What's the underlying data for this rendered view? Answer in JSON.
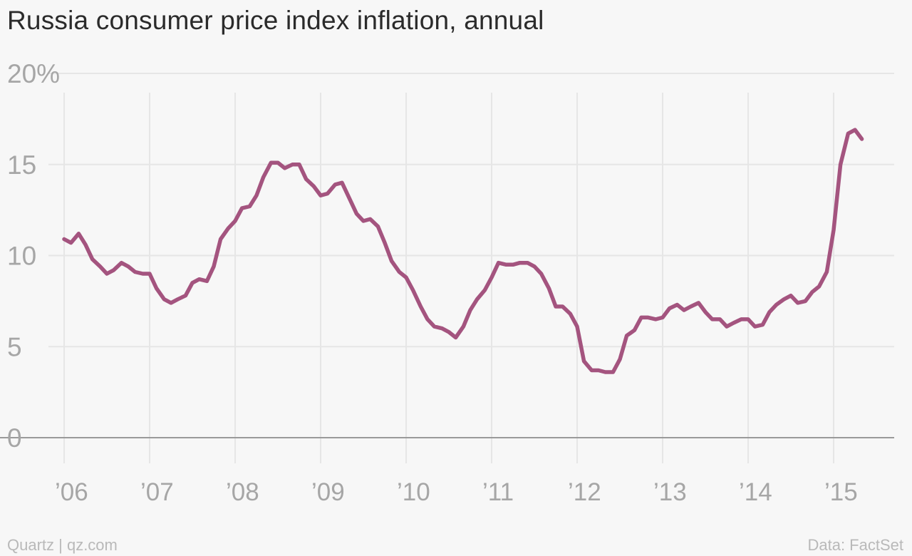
{
  "title": "Russia consumer price index inflation, annual",
  "footer": {
    "source_left": "Quartz | qz.com",
    "source_right": "Data: FactSet"
  },
  "colors": {
    "line": "#a4547f",
    "grid": "#e6e6e6",
    "baseline": "#9a9a9a",
    "tick_text": "#a6a6a6",
    "background": "#f7f7f7"
  },
  "chart_data": {
    "type": "line",
    "title": "Russia consumer price index inflation, annual",
    "xlabel": "",
    "ylabel": "",
    "ylim": [
      0,
      20
    ],
    "xlim": [
      2006.0,
      2015.7
    ],
    "grid": true,
    "yticks": [
      {
        "value": 20,
        "label": "20%"
      },
      {
        "value": 15,
        "label": "15"
      },
      {
        "value": 10,
        "label": "10"
      },
      {
        "value": 5,
        "label": "5"
      },
      {
        "value": 0,
        "label": "0"
      }
    ],
    "xticks": [
      {
        "value": 2006,
        "label": "’06"
      },
      {
        "value": 2007,
        "label": "’07"
      },
      {
        "value": 2008,
        "label": "’08"
      },
      {
        "value": 2009,
        "label": "’09"
      },
      {
        "value": 2010,
        "label": "’10"
      },
      {
        "value": 2011,
        "label": "’11"
      },
      {
        "value": 2012,
        "label": "’12"
      },
      {
        "value": 2013,
        "label": "’13"
      },
      {
        "value": 2014,
        "label": "’14"
      },
      {
        "value": 2015,
        "label": "’15"
      }
    ],
    "series": [
      {
        "values": [
          [
            2006.0,
            10.9
          ],
          [
            2006.08,
            10.7
          ],
          [
            2006.17,
            11.2
          ],
          [
            2006.25,
            10.6
          ],
          [
            2006.33,
            9.8
          ],
          [
            2006.42,
            9.4
          ],
          [
            2006.5,
            9.0
          ],
          [
            2006.58,
            9.2
          ],
          [
            2006.67,
            9.6
          ],
          [
            2006.75,
            9.4
          ],
          [
            2006.83,
            9.1
          ],
          [
            2006.92,
            9.0
          ],
          [
            2007.0,
            9.0
          ],
          [
            2007.08,
            8.2
          ],
          [
            2007.17,
            7.6
          ],
          [
            2007.25,
            7.4
          ],
          [
            2007.33,
            7.6
          ],
          [
            2007.42,
            7.8
          ],
          [
            2007.5,
            8.5
          ],
          [
            2007.58,
            8.7
          ],
          [
            2007.67,
            8.6
          ],
          [
            2007.75,
            9.4
          ],
          [
            2007.83,
            10.9
          ],
          [
            2007.92,
            11.5
          ],
          [
            2008.0,
            11.9
          ],
          [
            2008.08,
            12.6
          ],
          [
            2008.17,
            12.7
          ],
          [
            2008.25,
            13.3
          ],
          [
            2008.33,
            14.3
          ],
          [
            2008.42,
            15.1
          ],
          [
            2008.5,
            15.1
          ],
          [
            2008.58,
            14.8
          ],
          [
            2008.67,
            15.0
          ],
          [
            2008.75,
            15.0
          ],
          [
            2008.83,
            14.2
          ],
          [
            2008.92,
            13.8
          ],
          [
            2009.0,
            13.3
          ],
          [
            2009.08,
            13.4
          ],
          [
            2009.17,
            13.9
          ],
          [
            2009.25,
            14.0
          ],
          [
            2009.33,
            13.2
          ],
          [
            2009.42,
            12.3
          ],
          [
            2009.5,
            11.9
          ],
          [
            2009.58,
            12.0
          ],
          [
            2009.67,
            11.6
          ],
          [
            2009.75,
            10.7
          ],
          [
            2009.83,
            9.7
          ],
          [
            2009.92,
            9.1
          ],
          [
            2010.0,
            8.8
          ],
          [
            2010.08,
            8.1
          ],
          [
            2010.17,
            7.2
          ],
          [
            2010.25,
            6.5
          ],
          [
            2010.33,
            6.1
          ],
          [
            2010.42,
            6.0
          ],
          [
            2010.5,
            5.8
          ],
          [
            2010.58,
            5.5
          ],
          [
            2010.67,
            6.1
          ],
          [
            2010.75,
            7.0
          ],
          [
            2010.83,
            7.6
          ],
          [
            2010.92,
            8.1
          ],
          [
            2011.0,
            8.8
          ],
          [
            2011.08,
            9.6
          ],
          [
            2011.17,
            9.5
          ],
          [
            2011.25,
            9.5
          ],
          [
            2011.33,
            9.6
          ],
          [
            2011.42,
            9.6
          ],
          [
            2011.5,
            9.4
          ],
          [
            2011.58,
            9.0
          ],
          [
            2011.67,
            8.2
          ],
          [
            2011.75,
            7.2
          ],
          [
            2011.83,
            7.2
          ],
          [
            2011.92,
            6.8
          ],
          [
            2012.0,
            6.1
          ],
          [
            2012.08,
            4.2
          ],
          [
            2012.17,
            3.7
          ],
          [
            2012.25,
            3.7
          ],
          [
            2012.33,
            3.6
          ],
          [
            2012.42,
            3.6
          ],
          [
            2012.5,
            4.3
          ],
          [
            2012.58,
            5.6
          ],
          [
            2012.67,
            5.9
          ],
          [
            2012.75,
            6.6
          ],
          [
            2012.83,
            6.6
          ],
          [
            2012.92,
            6.5
          ],
          [
            2013.0,
            6.6
          ],
          [
            2013.08,
            7.1
          ],
          [
            2013.17,
            7.3
          ],
          [
            2013.25,
            7.0
          ],
          [
            2013.33,
            7.2
          ],
          [
            2013.42,
            7.4
          ],
          [
            2013.5,
            6.9
          ],
          [
            2013.58,
            6.5
          ],
          [
            2013.67,
            6.5
          ],
          [
            2013.75,
            6.1
          ],
          [
            2013.83,
            6.3
          ],
          [
            2013.92,
            6.5
          ],
          [
            2014.0,
            6.5
          ],
          [
            2014.08,
            6.1
          ],
          [
            2014.17,
            6.2
          ],
          [
            2014.25,
            6.9
          ],
          [
            2014.33,
            7.3
          ],
          [
            2014.42,
            7.6
          ],
          [
            2014.5,
            7.8
          ],
          [
            2014.58,
            7.4
          ],
          [
            2014.67,
            7.5
          ],
          [
            2014.75,
            8.0
          ],
          [
            2014.83,
            8.3
          ],
          [
            2014.92,
            9.1
          ],
          [
            2015.0,
            11.4
          ],
          [
            2015.08,
            15.0
          ],
          [
            2015.17,
            16.7
          ],
          [
            2015.25,
            16.9
          ],
          [
            2015.33,
            16.4
          ]
        ]
      }
    ]
  }
}
